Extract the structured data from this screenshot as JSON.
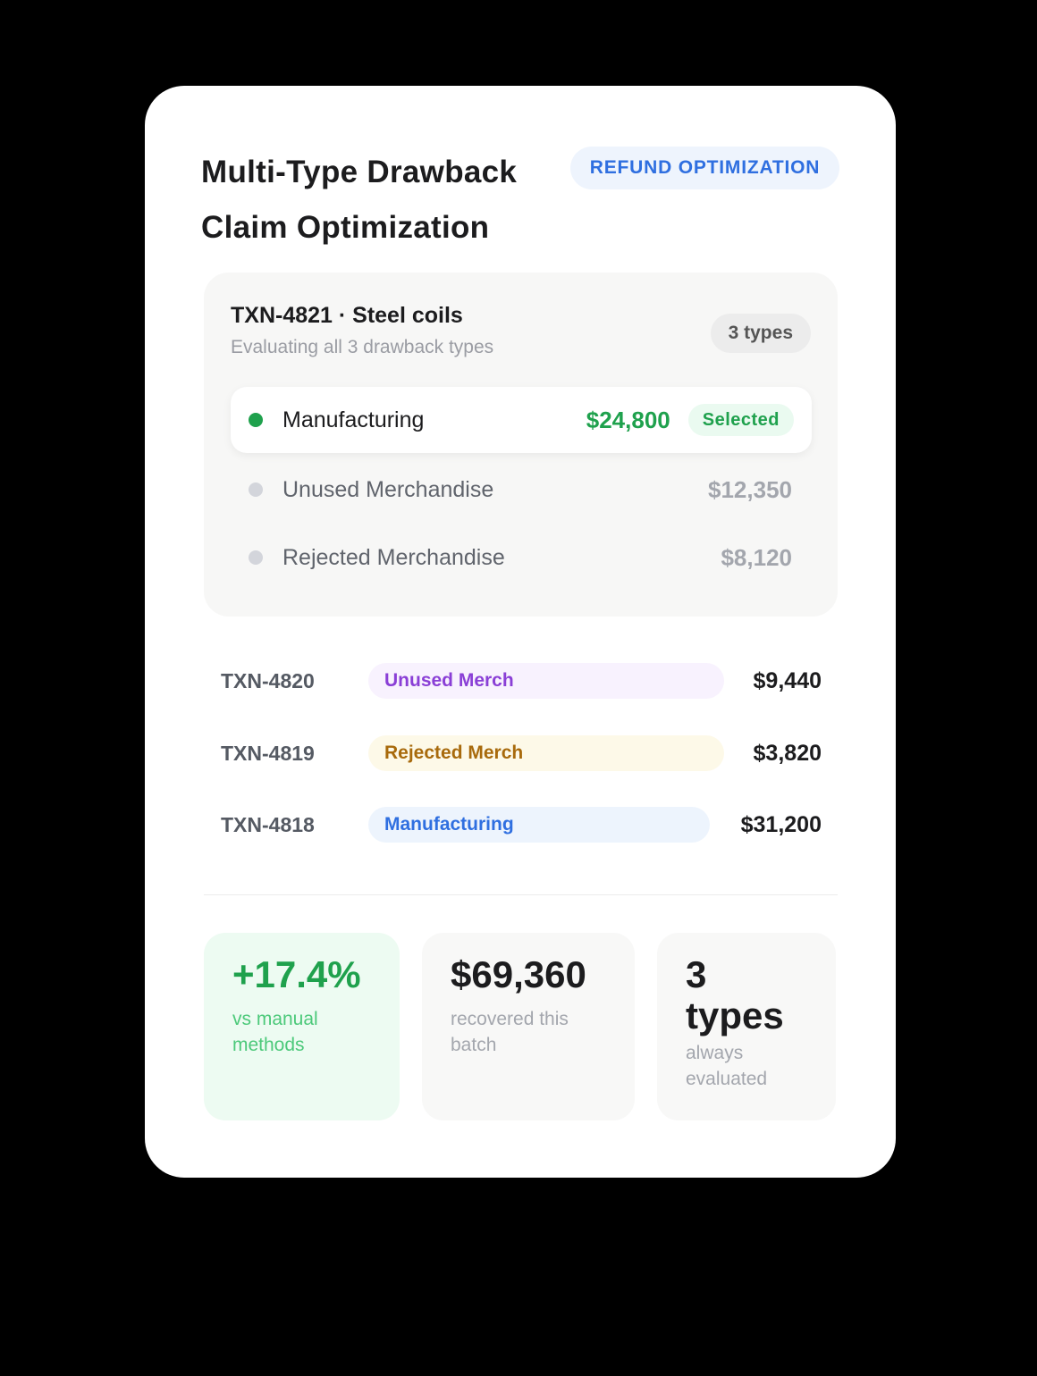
{
  "header": {
    "title_line1": "Multi-Type Drawback",
    "title_line2": "Claim Optimization",
    "badge": "REFUND OPTIMIZATION"
  },
  "transaction": {
    "title": "TXN-4821 · Steel coils",
    "subtitle": "Evaluating all 3 drawback types",
    "types_badge": "3 types",
    "options": [
      {
        "label": "Manufacturing",
        "amount": "$24,800",
        "status": "Selected",
        "dot_color": "#1fa14d"
      },
      {
        "label": "Unused Merchandise",
        "amount": "$12,350",
        "dot_color": "#d3d5db"
      },
      {
        "label": "Rejected Merchandise",
        "amount": "$8,120",
        "dot_color": "#d3d5db"
      }
    ]
  },
  "history": [
    {
      "id": "TXN-4820",
      "type": "Unused Merch",
      "amount": "$9,440",
      "bg": "#f8f2fe",
      "fg": "#8a3fd6"
    },
    {
      "id": "TXN-4819",
      "type": "Rejected Merch",
      "amount": "$3,820",
      "bg": "#fdf9e8",
      "fg": "#a86a0c"
    },
    {
      "id": "TXN-4818",
      "type": "Manufacturing",
      "amount": "$31,200",
      "bg": "#edf4fd",
      "fg": "#2f6fe0"
    }
  ],
  "stats": [
    {
      "value": "+17.4%",
      "label": "vs manual methods"
    },
    {
      "value": "$69,360",
      "label": "recovered this batch"
    },
    {
      "value_line1": "3",
      "value_line2": "types",
      "label": "always evaluated"
    }
  ]
}
